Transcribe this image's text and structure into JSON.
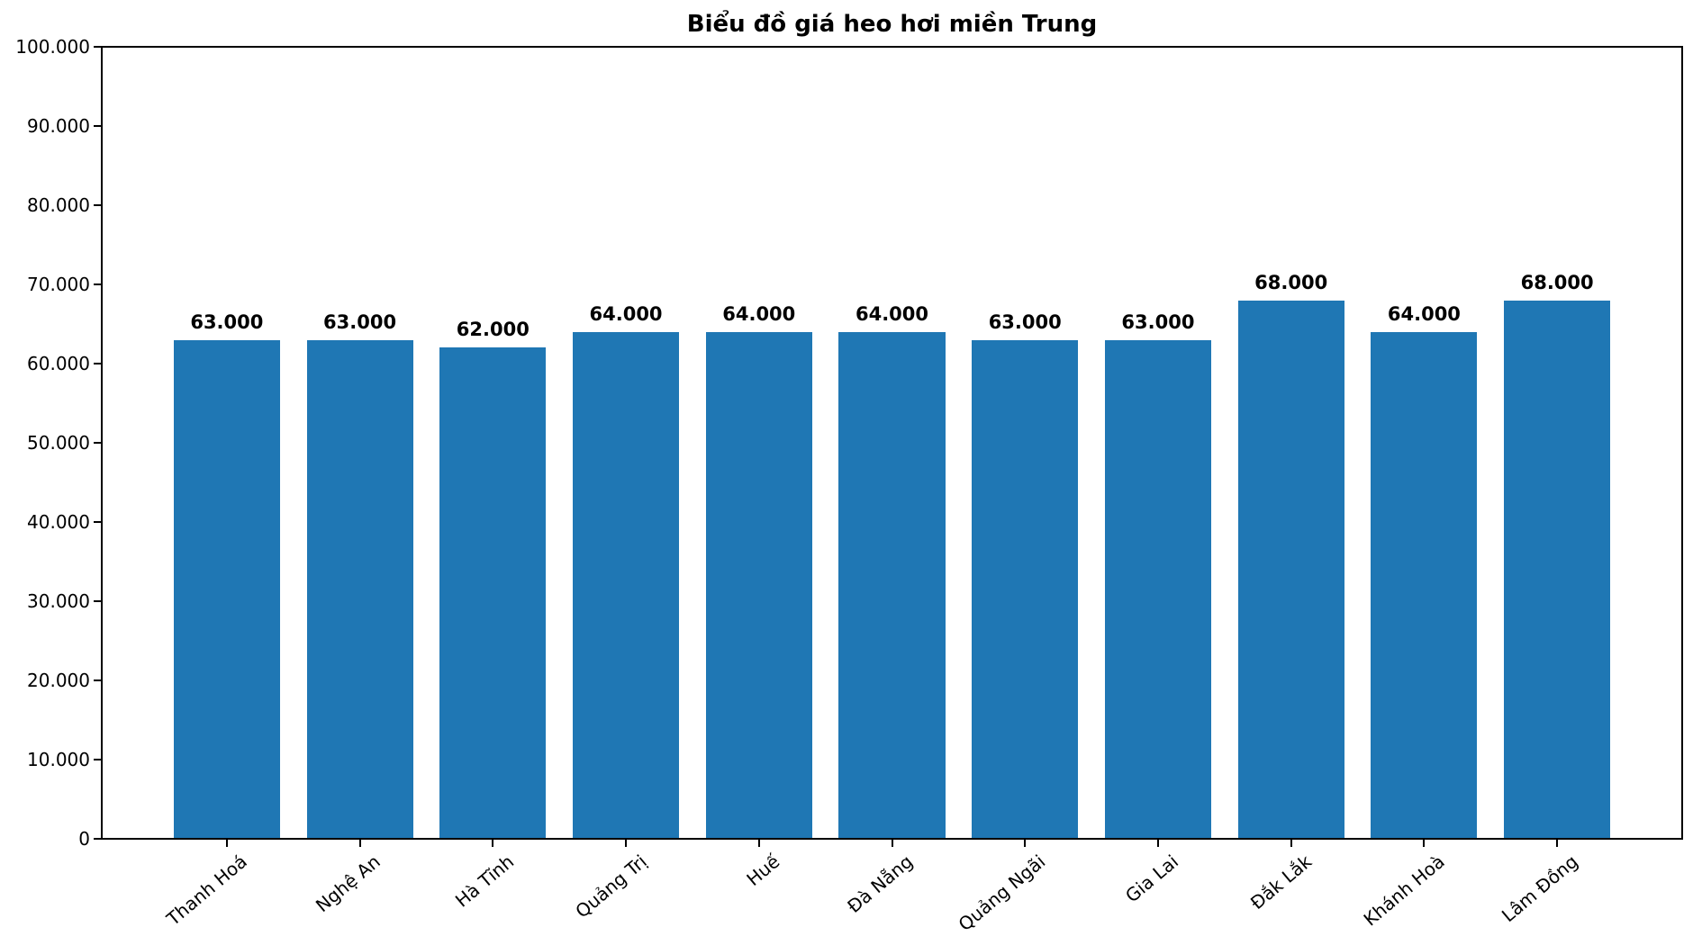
{
  "title": "Biểu đồ giá heo hơi miền Trung",
  "colors": {
    "bar": "#1f77b4",
    "axis": "#000000",
    "text": "#000000",
    "background": "#ffffff"
  },
  "chart_data": {
    "type": "bar",
    "title": "Biểu đồ giá heo hơi miền Trung",
    "categories": [
      "Thanh Hoá",
      "Nghệ An",
      "Hà Tĩnh",
      "Quảng Trị",
      "Huế",
      "Đà Nẵng",
      "Quảng Ngãi",
      "Gia Lai",
      "Đắk Lắk",
      "Khánh Hoà",
      "Lâm Đồng"
    ],
    "values": [
      63000,
      63000,
      62000,
      64000,
      64000,
      64000,
      63000,
      63000,
      68000,
      64000,
      68000
    ],
    "value_labels": [
      "63.000",
      "63.000",
      "62.000",
      "64.000",
      "64.000",
      "64.000",
      "63.000",
      "63.000",
      "68.000",
      "64.000",
      "68.000"
    ],
    "xlabel": "",
    "ylabel": "",
    "ylim": [
      0,
      100000
    ],
    "ytick_step": 10000,
    "ytick_labels": [
      "0",
      "10.000",
      "20.000",
      "30.000",
      "40.000",
      "50.000",
      "60.000",
      "70.000",
      "80.000",
      "90.000",
      "100.000"
    ],
    "grid": false,
    "legend": null,
    "bar_color": "#1f77b4",
    "bar_width_fraction": 0.8,
    "xtick_rotation_deg": 40
  }
}
